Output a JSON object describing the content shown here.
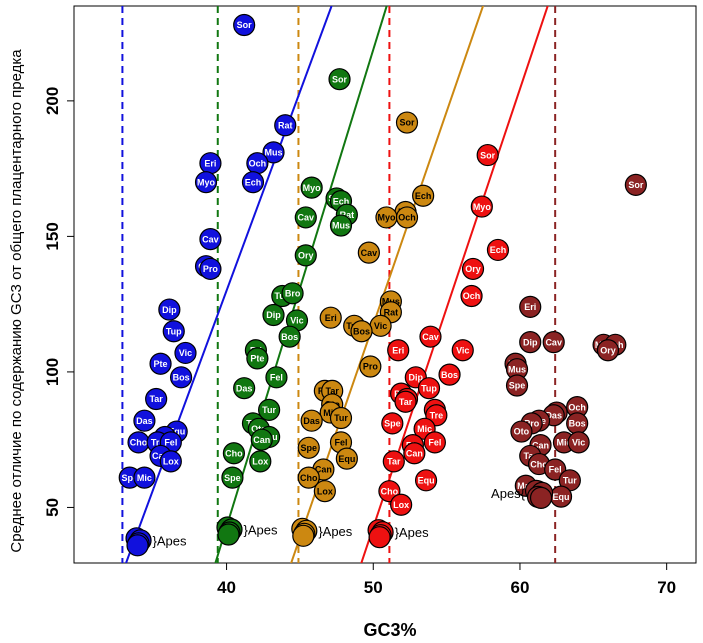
{
  "chart_data": {
    "type": "scatter",
    "title": "",
    "xlabel": "GC3%",
    "ylabel": "Среднее отличие по содержанию GC3 от общего плацентарного предка",
    "xlim": [
      29.6,
      72.0
    ],
    "ylim": [
      29.5,
      235.0
    ],
    "xticks": [
      40,
      50,
      60,
      70
    ],
    "yticks": [
      50,
      100,
      150,
      200
    ],
    "apes_label": "}Apes",
    "apes_label_left": "Apes{",
    "series": [
      {
        "name": "blue",
        "color": "#1111dd",
        "text_color": "#ffffff",
        "vline": 32.9,
        "line": [
          [
            32.5,
            20
          ],
          [
            47.5,
            240
          ]
        ],
        "apes": [
          34.0,
          37.5
        ],
        "points": [
          {
            "label": "Sor",
            "x": 41.2,
            "y": 228
          },
          {
            "label": "Rat",
            "x": 44.0,
            "y": 191
          },
          {
            "label": "Mus",
            "x": 43.2,
            "y": 181
          },
          {
            "label": "Eri",
            "x": 38.9,
            "y": 177
          },
          {
            "label": "Och",
            "x": 42.1,
            "y": 177
          },
          {
            "label": "Myo",
            "x": 38.6,
            "y": 170
          },
          {
            "label": "Ech",
            "x": 41.8,
            "y": 170
          },
          {
            "label": "Cav",
            "x": 38.9,
            "y": 149
          },
          {
            "label": "Ory",
            "x": 38.6,
            "y": 139
          },
          {
            "label": "Pro",
            "x": 38.9,
            "y": 138
          },
          {
            "label": "Dip",
            "x": 36.1,
            "y": 123
          },
          {
            "label": "Tup",
            "x": 36.4,
            "y": 115
          },
          {
            "label": "Vic",
            "x": 37.2,
            "y": 107
          },
          {
            "label": "Pte",
            "x": 35.5,
            "y": 103
          },
          {
            "label": "Bos",
            "x": 36.9,
            "y": 98
          },
          {
            "label": "Tar",
            "x": 35.2,
            "y": 90
          },
          {
            "label": "Das",
            "x": 34.4,
            "y": 82
          },
          {
            "label": "Equ",
            "x": 36.6,
            "y": 78
          },
          {
            "label": "Oto",
            "x": 35.8,
            "y": 76
          },
          {
            "label": "Cho",
            "x": 34.0,
            "y": 74
          },
          {
            "label": "Tre",
            "x": 35.3,
            "y": 74
          },
          {
            "label": "Fel",
            "x": 36.2,
            "y": 74
          },
          {
            "label": "Can",
            "x": 35.5,
            "y": 69
          },
          {
            "label": "Lox",
            "x": 36.2,
            "y": 67
          },
          {
            "label": "Spe",
            "x": 33.4,
            "y": 61
          },
          {
            "label": "Mic",
            "x": 34.4,
            "y": 61
          }
        ]
      },
      {
        "name": "green",
        "color": "#117711",
        "text_color": "#ffffff",
        "vline": 39.4,
        "line": [
          [
            38.7,
            20
          ],
          [
            51.2,
            240
          ]
        ],
        "apes": [
          40.2,
          41.5
        ],
        "points": [
          {
            "label": "Sor",
            "x": 47.7,
            "y": 208
          },
          {
            "label": "Myo",
            "x": 45.8,
            "y": 168
          },
          {
            "label": "Sch",
            "x": 47.5,
            "y": 164
          },
          {
            "label": "Ech",
            "x": 47.8,
            "y": 163
          },
          {
            "label": "Rat",
            "x": 48.2,
            "y": 158
          },
          {
            "label": "Cav",
            "x": 45.4,
            "y": 157
          },
          {
            "label": "Mus",
            "x": 47.8,
            "y": 154
          },
          {
            "label": "Ory",
            "x": 45.4,
            "y": 143
          },
          {
            "label": "Tup",
            "x": 43.8,
            "y": 128
          },
          {
            "label": "Bro",
            "x": 44.5,
            "y": 129
          },
          {
            "label": "Dip",
            "x": 43.2,
            "y": 121
          },
          {
            "label": "Vic",
            "x": 44.8,
            "y": 119
          },
          {
            "label": "Bos",
            "x": 44.3,
            "y": 113
          },
          {
            "label": "Eri",
            "x": 42.0,
            "y": 108
          },
          {
            "label": "Pte",
            "x": 42.1,
            "y": 105
          },
          {
            "label": "Fel",
            "x": 43.4,
            "y": 98
          },
          {
            "label": "Das",
            "x": 41.2,
            "y": 94
          },
          {
            "label": "Tur",
            "x": 42.9,
            "y": 86
          },
          {
            "label": "Tar",
            "x": 41.8,
            "y": 81
          },
          {
            "label": "Oto",
            "x": 42.2,
            "y": 79
          },
          {
            "label": "Equ",
            "x": 42.9,
            "y": 76
          },
          {
            "label": "Can",
            "x": 42.4,
            "y": 75
          },
          {
            "label": "Cho",
            "x": 40.5,
            "y": 70
          },
          {
            "label": "Lox",
            "x": 42.3,
            "y": 67
          },
          {
            "label": "Spe",
            "x": 40.4,
            "y": 61
          }
        ]
      },
      {
        "name": "orange",
        "color": "#cc8811",
        "text_color": "#000000",
        "vline": 44.9,
        "line": [
          [
            43.8,
            20
          ],
          [
            57.8,
            240
          ]
        ],
        "apes": [
          45.3,
          41.0
        ],
        "points": [
          {
            "label": "Sor",
            "x": 52.3,
            "y": 192
          },
          {
            "label": "Ech",
            "x": 53.4,
            "y": 165
          },
          {
            "label": "Pro",
            "x": 52.2,
            "y": 159
          },
          {
            "label": "Myo",
            "x": 50.9,
            "y": 157
          },
          {
            "label": "Och",
            "x": 52.3,
            "y": 157
          },
          {
            "label": "Cav",
            "x": 49.7,
            "y": 144
          },
          {
            "label": "Mus",
            "x": 51.2,
            "y": 126
          },
          {
            "label": "Rat",
            "x": 51.2,
            "y": 122
          },
          {
            "label": "Eri",
            "x": 47.1,
            "y": 120
          },
          {
            "label": "Tup",
            "x": 48.7,
            "y": 117
          },
          {
            "label": "Vic",
            "x": 50.5,
            "y": 117
          },
          {
            "label": "Bos",
            "x": 49.2,
            "y": 115
          },
          {
            "label": "Pro",
            "x": 49.8,
            "y": 102
          },
          {
            "label": "Pte",
            "x": 46.7,
            "y": 93
          },
          {
            "label": "Tar",
            "x": 47.2,
            "y": 93
          },
          {
            "label": "Oto",
            "x": 47.2,
            "y": 88
          },
          {
            "label": "Mic",
            "x": 47.1,
            "y": 85
          },
          {
            "label": "Das",
            "x": 45.8,
            "y": 82
          },
          {
            "label": "Tur",
            "x": 47.8,
            "y": 83
          },
          {
            "label": "Fel",
            "x": 47.8,
            "y": 74
          },
          {
            "label": "Equ",
            "x": 48.2,
            "y": 68
          },
          {
            "label": "Spe",
            "x": 45.6,
            "y": 72
          },
          {
            "label": "Can",
            "x": 46.6,
            "y": 64
          },
          {
            "label": "Cho",
            "x": 45.6,
            "y": 61
          },
          {
            "label": "Lox",
            "x": 46.7,
            "y": 56
          }
        ]
      },
      {
        "name": "red",
        "color": "#ee1111",
        "text_color": "#ffffff",
        "vline": 51.1,
        "line": [
          [
            48.6,
            20
          ],
          [
            62.2,
            240
          ]
        ],
        "apes": [
          50.5,
          40.5
        ],
        "points": [
          {
            "label": "Sor",
            "x": 57.8,
            "y": 180
          },
          {
            "label": "Myo",
            "x": 57.4,
            "y": 161
          },
          {
            "label": "Ech",
            "x": 58.5,
            "y": 145
          },
          {
            "label": "Ory",
            "x": 56.8,
            "y": 138
          },
          {
            "label": "Och",
            "x": 56.7,
            "y": 128
          },
          {
            "label": "Cav",
            "x": 53.9,
            "y": 113
          },
          {
            "label": "Vic",
            "x": 56.1,
            "y": 108
          },
          {
            "label": "Eri",
            "x": 51.7,
            "y": 108
          },
          {
            "label": "Bos",
            "x": 55.2,
            "y": 99
          },
          {
            "label": "Dip",
            "x": 52.9,
            "y": 98
          },
          {
            "label": "Tup",
            "x": 53.8,
            "y": 94
          },
          {
            "label": "Pte",
            "x": 51.9,
            "y": 92
          },
          {
            "label": "Das",
            "x": 52.3,
            "y": 90
          },
          {
            "label": "Tar",
            "x": 52.2,
            "y": 89
          },
          {
            "label": "Oto",
            "x": 54.2,
            "y": 86
          },
          {
            "label": "Tre",
            "x": 54.3,
            "y": 84
          },
          {
            "label": "Spe",
            "x": 51.3,
            "y": 81
          },
          {
            "label": "Mic",
            "x": 53.5,
            "y": 79
          },
          {
            "label": "Fel",
            "x": 54.2,
            "y": 74
          },
          {
            "label": "Pte",
            "x": 52.7,
            "y": 73
          },
          {
            "label": "Can",
            "x": 52.8,
            "y": 70
          },
          {
            "label": "Tar",
            "x": 51.4,
            "y": 67
          },
          {
            "label": "Equ",
            "x": 53.6,
            "y": 60
          },
          {
            "label": "Cho",
            "x": 51.1,
            "y": 56
          },
          {
            "label": "Lox",
            "x": 51.9,
            "y": 51
          }
        ]
      },
      {
        "name": "darkred",
        "color": "#8b2323",
        "text_color": "#ffffff",
        "vline": 62.4,
        "line": null,
        "apes": [
          61.3,
          55.0
        ],
        "points": [
          {
            "label": "Sor",
            "x": 67.9,
            "y": 169
          },
          {
            "label": "Eri",
            "x": 60.7,
            "y": 124
          },
          {
            "label": "Dip",
            "x": 60.7,
            "y": 111
          },
          {
            "label": "Cav",
            "x": 62.3,
            "y": 111
          },
          {
            "label": "Mye",
            "x": 65.7,
            "y": 110
          },
          {
            "label": "Ech",
            "x": 66.5,
            "y": 110
          },
          {
            "label": "Ory",
            "x": 66.0,
            "y": 108
          },
          {
            "label": "Rat",
            "x": 59.7,
            "y": 103
          },
          {
            "label": "Mus",
            "x": 59.8,
            "y": 101
          },
          {
            "label": "Spe",
            "x": 59.8,
            "y": 95
          },
          {
            "label": "Och",
            "x": 63.9,
            "y": 87
          },
          {
            "label": "Tup",
            "x": 62.5,
            "y": 85
          },
          {
            "label": "Das",
            "x": 62.3,
            "y": 84
          },
          {
            "label": "Pte",
            "x": 61.3,
            "y": 82
          },
          {
            "label": "Pro",
            "x": 60.8,
            "y": 81
          },
          {
            "label": "Bos",
            "x": 63.9,
            "y": 81
          },
          {
            "label": "Oto",
            "x": 60.1,
            "y": 78
          },
          {
            "label": "Mic",
            "x": 63.0,
            "y": 74
          },
          {
            "label": "Vic",
            "x": 64.0,
            "y": 74
          },
          {
            "label": "Can",
            "x": 61.4,
            "y": 73
          },
          {
            "label": "Tar",
            "x": 60.7,
            "y": 69
          },
          {
            "label": "Cho",
            "x": 61.3,
            "y": 66
          },
          {
            "label": "Fel",
            "x": 62.4,
            "y": 64
          },
          {
            "label": "Tur",
            "x": 63.4,
            "y": 60
          },
          {
            "label": "Mac",
            "x": 60.4,
            "y": 58
          },
          {
            "label": "Lox",
            "x": 61.2,
            "y": 56
          },
          {
            "label": "Equ",
            "x": 62.8,
            "y": 54
          }
        ]
      }
    ]
  }
}
